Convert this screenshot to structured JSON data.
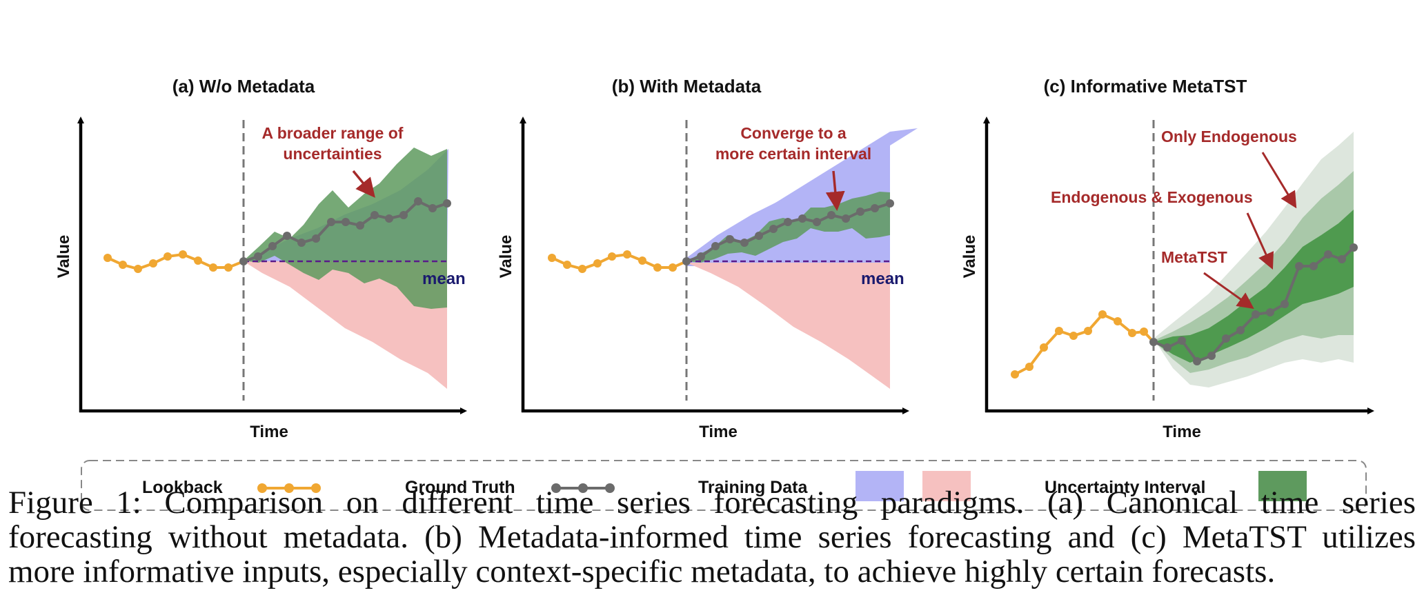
{
  "figure": {
    "panels": [
      {
        "title": "(a) W/o Metadata",
        "xlabel": "Time",
        "ylabel": "Value",
        "annotation": [
          "A broader range of",
          "uncertainties"
        ],
        "mean_label": "mean"
      },
      {
        "title": "(b) With Metadata",
        "xlabel": "Time",
        "ylabel": "Value",
        "annotation": [
          "Converge to a",
          "more certain interval"
        ],
        "mean_label": "mean"
      },
      {
        "title": "(c) Informative MetaTST",
        "xlabel": "Time",
        "ylabel": "Value",
        "annotations": [
          "Only Endogenous",
          "Endogenous & Exogenous",
          "MetaTST"
        ]
      }
    ],
    "legend": {
      "lookback": "Lookback",
      "ground_truth": "Ground Truth",
      "training_data": "Training Data",
      "uncertainty_interval": "Uncertainty Interval"
    },
    "colors": {
      "lookback": "#f0a732",
      "ground_truth": "#6b6b6b",
      "training_blue": "#b3b4f6",
      "training_red": "#f6c1c0",
      "uncertainty_green": "#5e9a5e",
      "annotation_red": "#a52a2a",
      "mean_purple": "#5a1a8a"
    }
  },
  "caption": {
    "line1": "Figure 1: Comparison on different time series forecasting paradigms. (a) Canonical time series",
    "line2": "forecasting without metadata. (b) Metadata-informed time series forecasting and (c) MetaTST utilizes",
    "line3": "more informative inputs, especially context-specific metadata, to achieve highly certain forecasts."
  }
}
